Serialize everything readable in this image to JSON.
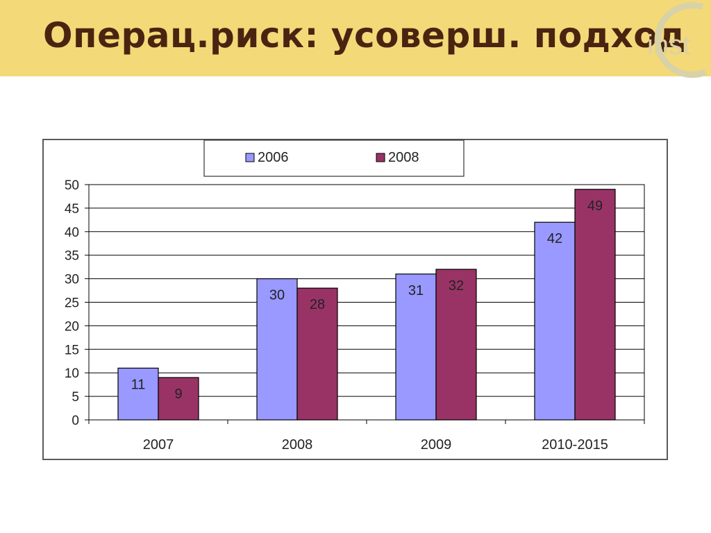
{
  "slide": {
    "title": "Операц.риск: усоверш. подход"
  },
  "logo": {
    "text": "inst",
    "color": "#d8d2a8"
  },
  "chart_data": {
    "type": "bar",
    "categories": [
      "2007",
      "2008",
      "2009",
      "2010-2015"
    ],
    "series": [
      {
        "name": "2006",
        "values": [
          11,
          30,
          31,
          42
        ],
        "color": "#9999ff"
      },
      {
        "name": "2008",
        "values": [
          9,
          28,
          32,
          49
        ],
        "color": "#993366"
      }
    ],
    "ylim": [
      0,
      50
    ],
    "yticks": [
      0,
      5,
      10,
      15,
      20,
      25,
      30,
      35,
      40,
      45,
      50
    ],
    "xlabel": "",
    "ylabel": "",
    "title": "",
    "grid": true,
    "legend_position": "top",
    "data_labels": true
  }
}
